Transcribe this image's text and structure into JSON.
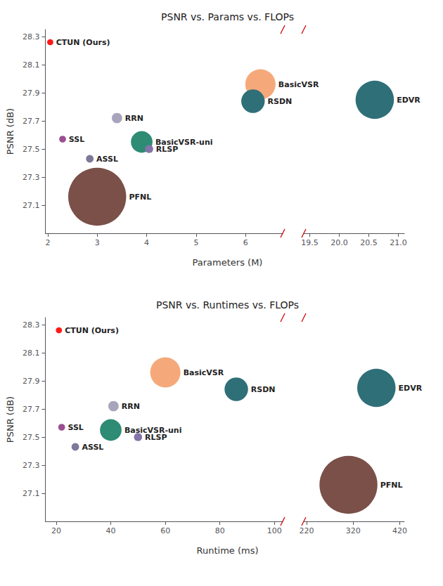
{
  "chart_data": [
    {
      "type": "scatter",
      "title": "PSNR vs. Params vs. FLOPs",
      "xlabel": "Parameters (M)",
      "ylabel": "PSNR (dB)",
      "annotations": [
        "CTUN (Ours)",
        "BasicVSR",
        "RSDN",
        "EDVR",
        "RRN",
        "BasicVSR-uni",
        "RLSP",
        "SSL",
        "ASSL",
        "PFNL"
      ],
      "x": [
        2.05,
        6.3,
        6.15,
        20.6,
        3.4,
        3.9,
        4.05,
        2.3,
        2.85,
        3.0
      ],
      "values": [
        28.26,
        27.96,
        27.84,
        27.85,
        27.72,
        27.55,
        27.5,
        27.57,
        27.43,
        27.16
      ],
      "sizes": [
        5,
        320,
        190,
        520,
        30,
        160,
        15,
        8,
        12,
        1200
      ],
      "colors": [
        "#FF1A1A",
        "#F5A97A",
        "#2F6F78",
        "#2F6F78",
        "#A8A4BC",
        "#2E8B74",
        "#8474A8",
        "#9B4F90",
        "#807898",
        "#7A5048"
      ],
      "xlim": [
        [
          1.95,
          6.75
        ],
        [
          19.4,
          21.1
        ]
      ],
      "xticks": [
        [
          2,
          3,
          4,
          5,
          6
        ],
        [
          19.5,
          {
            "value": 20.0,
            "label": "20.0"
          },
          20.5,
          {
            "value": 21.0,
            "label": "21.0"
          }
        ]
      ],
      "ylim": [
        26.9,
        28.35
      ],
      "yticks": [
        27.1,
        27.3,
        27.5,
        27.7,
        27.9,
        28.1,
        28.3
      ],
      "grid": false
    },
    {
      "type": "scatter",
      "title": "PSNR vs. Runtimes vs. FLOPs",
      "xlabel": "Runtime (ms)",
      "ylabel": "PSNR (dB)",
      "annotations": [
        "CTUN (Ours)",
        "BasicVSR",
        "RSDN",
        "EDVR",
        "RRN",
        "BasicVSR-uni",
        "RLSP",
        "SSL",
        "ASSL",
        "PFNL"
      ],
      "x": [
        21.0,
        60.0,
        86.0,
        370.0,
        41.0,
        40.0,
        50.0,
        22.0,
        27.0,
        310.0
      ],
      "values": [
        28.26,
        27.96,
        27.84,
        27.85,
        27.72,
        27.55,
        27.5,
        27.57,
        27.43,
        27.16
      ],
      "sizes": [
        5,
        320,
        190,
        520,
        30,
        160,
        15,
        8,
        12,
        1200
      ],
      "colors": [
        "#FF1A1A",
        "#F5A97A",
        "#2F6F78",
        "#2F6F78",
        "#A8A4BC",
        "#2E8B74",
        "#8474A8",
        "#9B4F90",
        "#807898",
        "#7A5048"
      ],
      "xlim": [
        [
          16.0,
          103.0
        ],
        [
          214.0,
          430.0
        ]
      ],
      "xticks": [
        [
          20,
          40,
          60,
          80,
          100
        ],
        [
          220,
          320,
          420
        ]
      ],
      "ylim": [
        26.9,
        28.35
      ],
      "yticks": [
        27.1,
        27.3,
        27.5,
        27.7,
        27.9,
        28.1,
        28.3
      ],
      "grid": false
    }
  ]
}
